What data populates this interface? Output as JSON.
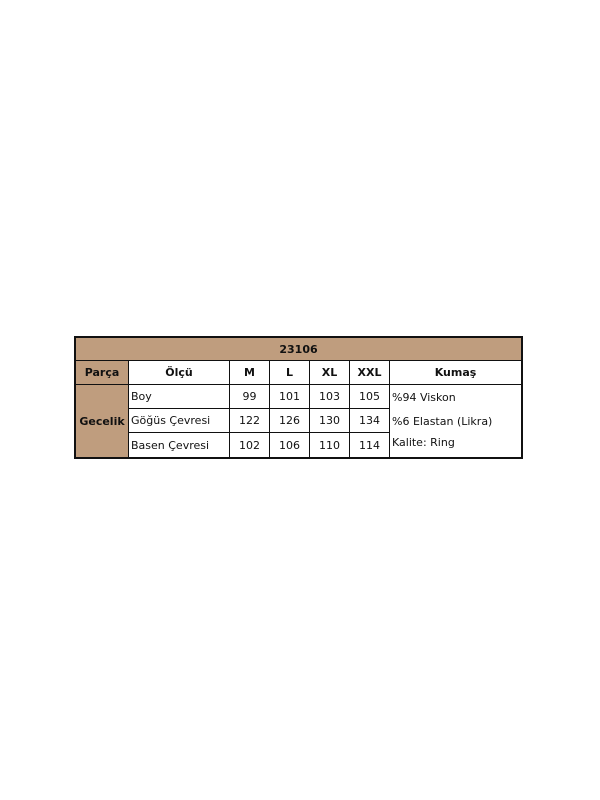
{
  "table": {
    "title": "23106",
    "headers": {
      "part": "Parça",
      "measure": "Ölçü",
      "sizes": [
        "M",
        "L",
        "XL",
        "XXL"
      ],
      "fabric": "Kumaş"
    },
    "part_name": "Gecelik",
    "rows": [
      {
        "label": "Boy",
        "values": [
          "99",
          "101",
          "103",
          "105"
        ]
      },
      {
        "label": "Göğüs Çevresi",
        "values": [
          "122",
          "126",
          "130",
          "134"
        ]
      },
      {
        "label": "Basen Çevresi",
        "values": [
          "102",
          "106",
          "110",
          "114"
        ]
      }
    ],
    "fabric_lines": [
      "%94 Viskon",
      "%6 Elastan (Likra)",
      "Kalite: Ring"
    ],
    "header_color": "#bf9d7e"
  }
}
